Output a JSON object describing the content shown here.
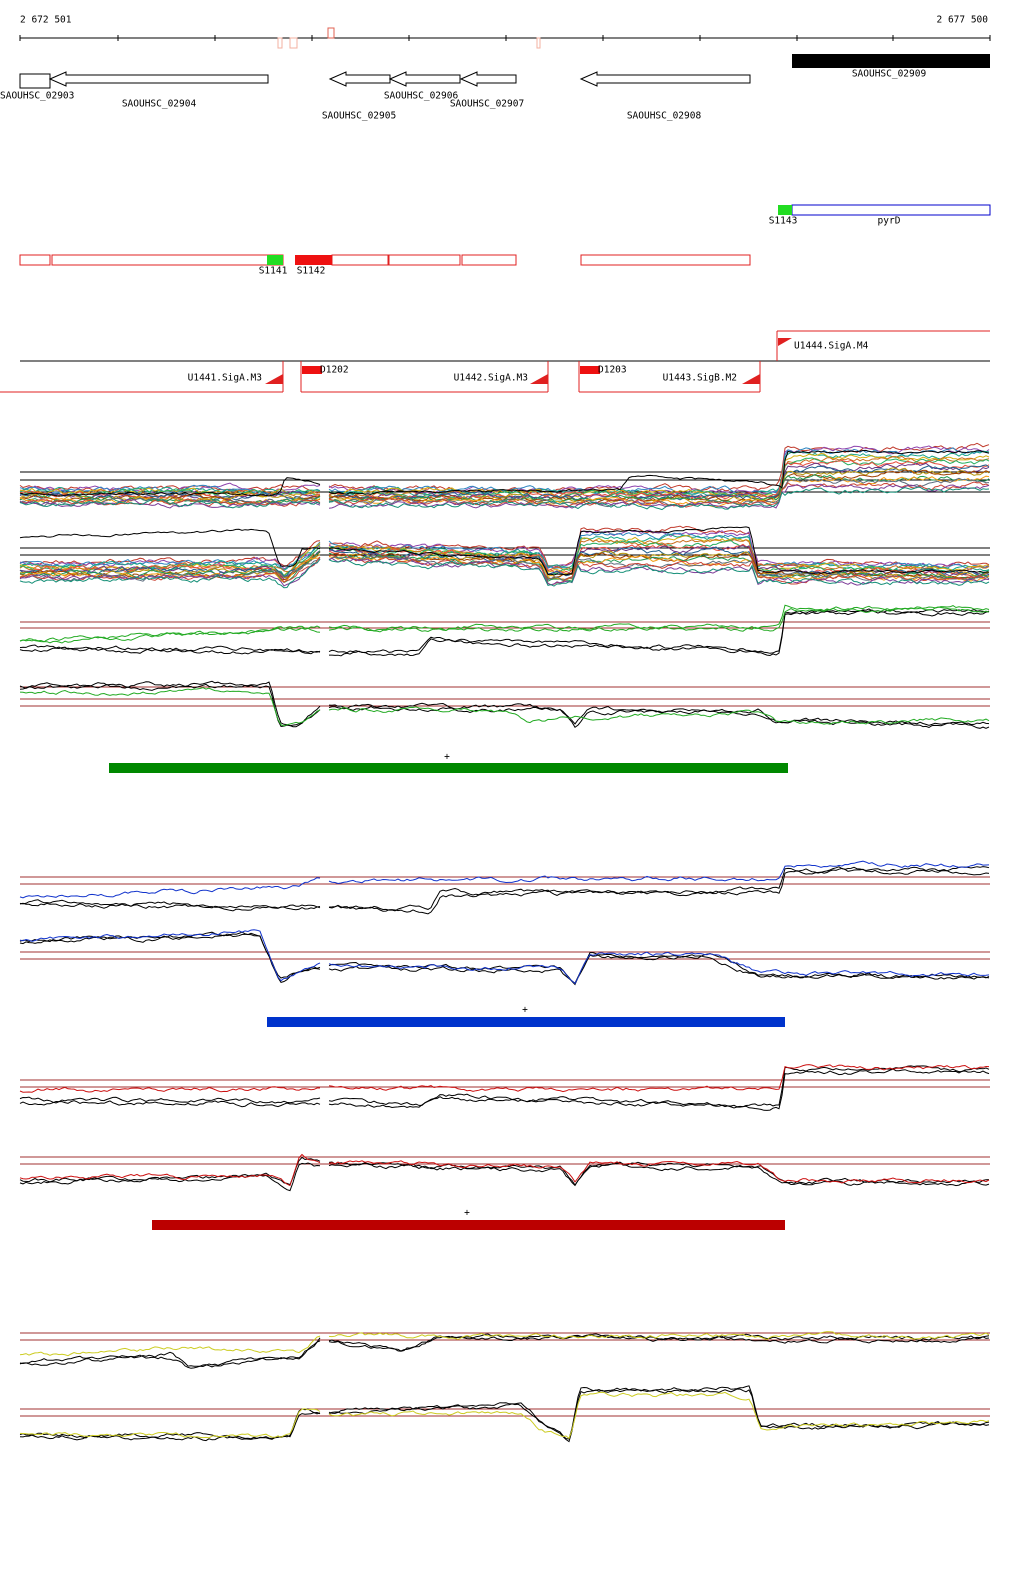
{
  "ruler": {
    "start": "2 672 501",
    "end": "2 677 500"
  },
  "genes": [
    "SAOUHSC_02903",
    "SAOUHSC_02904",
    "SAOUHSC_02905",
    "SAOUHSC_02906",
    "SAOUHSC_02907",
    "SAOUHSC_02908",
    "SAOUHSC_02909"
  ],
  "features": [
    "S1143",
    "pyrD",
    "S1141",
    "S1142"
  ],
  "promoters": [
    "U1444.SigA.M4",
    "U1441.SigA.M3",
    "U1442.SigA.M3",
    "U1443.SigB.M2"
  ],
  "terminators": [
    "D1202",
    "D1203"
  ],
  "segments": [
    "+",
    "+",
    "+"
  ]
}
